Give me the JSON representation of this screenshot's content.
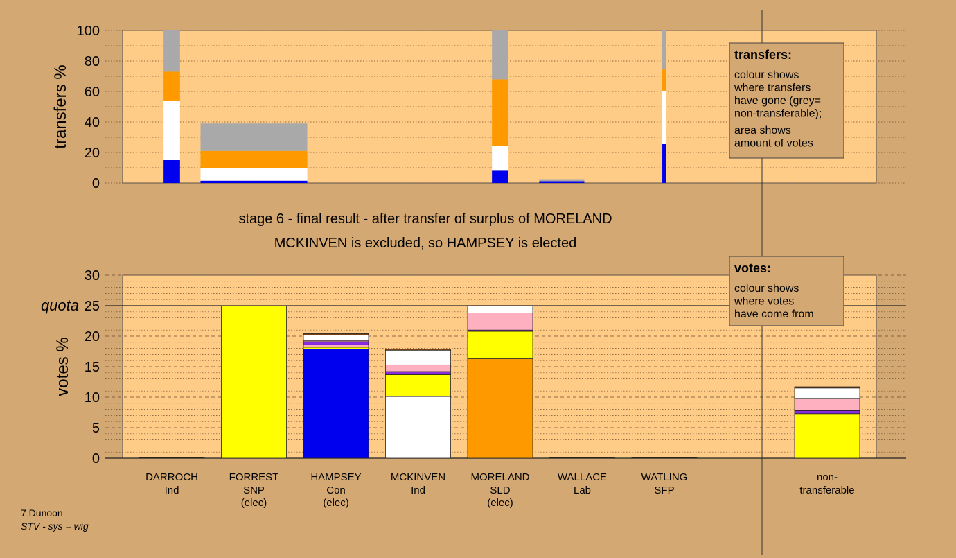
{
  "colors": {
    "background": "#d4a872",
    "plot_bg": "#ffcc88",
    "grey": "#a9a9a9",
    "orange": "#ff9900",
    "white": "#ffffff",
    "blue": "#0000ee",
    "yellow": "#ffff00",
    "pink": "#ffb0c0",
    "purple": "#8a2be2",
    "brown": "#8b4513"
  },
  "chart_data": [
    {
      "type": "bar",
      "name": "transfers",
      "ylabel": "transfers %",
      "ylim": [
        0,
        100
      ],
      "yticks": [
        "0",
        "20",
        "40",
        "60",
        "80",
        "100"
      ],
      "grid": "dotted",
      "columns": [
        {
          "candidate": "DARROCH",
          "width": 0.2,
          "segments": [
            {
              "color": "blue",
              "value": 15
            },
            {
              "color": "white",
              "value": 39
            },
            {
              "color": "orange",
              "value": 19
            },
            {
              "color": "grey",
              "value": 27
            }
          ]
        },
        {
          "candidate": "FORREST",
          "width": 1.3,
          "segments": [
            {
              "color": "blue",
              "value": 1.5
            },
            {
              "color": "white",
              "value": 8.5
            },
            {
              "color": "orange",
              "value": 11
            },
            {
              "color": "grey",
              "value": 18
            }
          ]
        },
        {
          "candidate": "WALLACE-area",
          "position": 4.75,
          "width": 0.55,
          "segments": [
            {
              "color": "blue",
              "value": 1.2
            },
            {
              "color": "grey",
              "value": 1.3
            }
          ]
        },
        {
          "candidate": "MORELAND",
          "width": 0.2,
          "segments": [
            {
              "color": "blue",
              "value": 8.5
            },
            {
              "color": "white",
              "value": 16
            },
            {
              "color": "orange",
              "value": 43.5
            },
            {
              "color": "grey",
              "value": 32
            }
          ]
        },
        {
          "candidate": "WATLING",
          "width": 0.05,
          "segments": [
            {
              "color": "blue",
              "value": 25.5
            },
            {
              "color": "white",
              "value": 35
            },
            {
              "color": "orange",
              "value": 14
            },
            {
              "color": "grey",
              "value": 25.5
            }
          ]
        }
      ],
      "legend": {
        "title": "transfers:",
        "lines": [
          "colour shows",
          "where transfers",
          "have gone (grey=",
          "non-transferable);",
          "area shows",
          "amount of votes"
        ]
      }
    },
    {
      "type": "bar",
      "name": "votes",
      "ylabel": "votes %",
      "ylim": [
        0,
        30
      ],
      "yticks": [
        "0",
        "5",
        "10",
        "15",
        "20",
        "25",
        "30"
      ],
      "quota": 25,
      "quota_label": "quota",
      "grid": "dashed",
      "categories": [
        {
          "name": "DARROCH",
          "party": "Ind",
          "status": ""
        },
        {
          "name": "FORREST",
          "party": "SNP",
          "status": "(elec)"
        },
        {
          "name": "HAMPSEY",
          "party": "Con",
          "status": "(elec)"
        },
        {
          "name": "MCKINVEN",
          "party": "Ind",
          "status": ""
        },
        {
          "name": "MORELAND",
          "party": "SLD",
          "status": "(elec)"
        },
        {
          "name": "WALLACE",
          "party": "Lab",
          "status": ""
        },
        {
          "name": "WATLING",
          "party": "SFP",
          "status": ""
        }
      ],
      "nontransferable_label": [
        "non-",
        "transferable"
      ],
      "stacks": [
        [
          {
            "color": "brown",
            "value": 0.1
          }
        ],
        [
          {
            "color": "yellow",
            "value": 25
          }
        ],
        [
          {
            "color": "blue",
            "value": 17.9
          },
          {
            "color": "yellow",
            "value": 0.3
          },
          {
            "color": "pink",
            "value": 0.4
          },
          {
            "color": "purple",
            "value": 0.5
          },
          {
            "color": "pink",
            "value": 0.2
          },
          {
            "color": "white",
            "value": 0.9
          },
          {
            "color": "brown",
            "value": 0.2
          }
        ],
        [
          {
            "color": "white",
            "value": 10.1
          },
          {
            "color": "yellow",
            "value": 3.6
          },
          {
            "color": "purple",
            "value": 0.5
          },
          {
            "color": "pink",
            "value": 1.1
          },
          {
            "color": "white",
            "value": 2.4
          },
          {
            "color": "brown",
            "value": 0.2
          }
        ],
        [
          {
            "color": "orange",
            "value": 16.3
          },
          {
            "color": "yellow",
            "value": 4.5
          },
          {
            "color": "purple",
            "value": 0.2
          },
          {
            "color": "pink",
            "value": 2.8
          },
          {
            "color": "white",
            "value": 1.2
          }
        ],
        [
          {
            "color": "brown",
            "value": 0.1
          }
        ],
        [
          {
            "color": "brown",
            "value": 0.1
          }
        ]
      ],
      "nontransferable": [
        {
          "color": "yellow",
          "value": 7.3
        },
        {
          "color": "purple",
          "value": 0.5
        },
        {
          "color": "pink",
          "value": 2.0
        },
        {
          "color": "white",
          "value": 1.7
        },
        {
          "color": "brown",
          "value": 0.2
        }
      ],
      "legend": {
        "title": "votes:",
        "lines": [
          "colour shows",
          "where votes",
          "have come from"
        ]
      }
    }
  ],
  "title_line1": "stage 6 - final result - after transfer of surplus of MORELAND",
  "title_line2": "MCKINVEN is excluded, so HAMPSEY is elected",
  "footer": {
    "line1": "7 Dunoon",
    "line2": "STV - sys = wig"
  }
}
